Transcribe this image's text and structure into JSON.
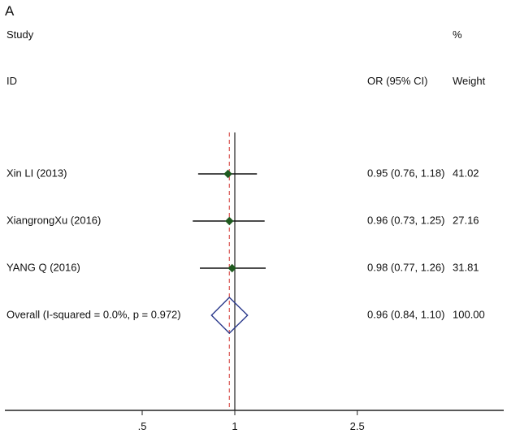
{
  "chart_data": {
    "type": "forest",
    "panel_label": "A",
    "header": {
      "study_label_line1": "Study",
      "study_label_line2": "ID",
      "effect_label": "OR (95% CI)",
      "weight_label_line1": "%",
      "weight_label_line2": "Weight"
    },
    "studies": [
      {
        "name": "Xin LI (2013)",
        "or": 0.95,
        "lower": 0.76,
        "upper": 1.18,
        "ci_text": "0.95 (0.76, 1.18)",
        "weight": "41.02"
      },
      {
        "name": "XiangrongXu (2016)",
        "or": 0.96,
        "lower": 0.73,
        "upper": 1.25,
        "ci_text": "0.96 (0.73, 1.25)",
        "weight": "27.16"
      },
      {
        "name": "YANG Q (2016)",
        "or": 0.98,
        "lower": 0.77,
        "upper": 1.26,
        "ci_text": "0.98 (0.77, 1.26)",
        "weight": "31.81"
      }
    ],
    "overall": {
      "name": "Overall  (I-squared = 0.0%, p = 0.972)",
      "or": 0.96,
      "lower": 0.84,
      "upper": 1.1,
      "ci_text": "0.96 (0.84, 1.10)",
      "weight": "100.00"
    },
    "x_axis": {
      "scale": "log",
      "ticks": [
        0.5,
        1,
        2.5
      ],
      "tick_labels": [
        ".5",
        "1",
        "2.5"
      ]
    },
    "null_line": 1,
    "pooled_line": 0.96,
    "marker_color": "#1f5a1f",
    "diamond_color": "#2b3a8c",
    "pooled_line_color": "#d9534f"
  }
}
